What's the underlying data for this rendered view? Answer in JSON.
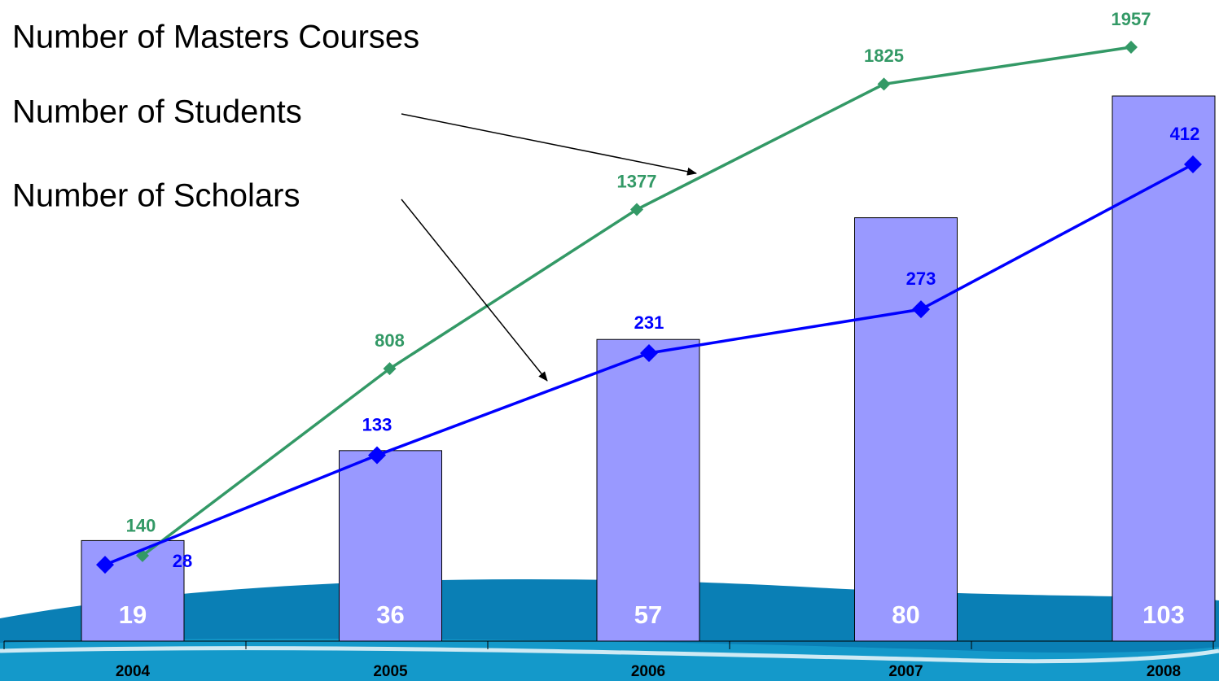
{
  "chart_data": {
    "type": "combo",
    "categories": [
      "2004",
      "2005",
      "2006",
      "2007",
      "2008"
    ],
    "series": [
      {
        "name": "Number of Masters Courses",
        "type": "bar",
        "color": "#9999ff",
        "values": [
          19,
          36,
          57,
          80,
          103
        ]
      },
      {
        "name": "Number of Students",
        "type": "line",
        "color": "#339966",
        "values": [
          140,
          808,
          1377,
          1825,
          1957
        ]
      },
      {
        "name": "Number of Scholars",
        "type": "line",
        "color": "#0000ff",
        "values": [
          28,
          133,
          231,
          273,
          412
        ]
      }
    ]
  }
}
